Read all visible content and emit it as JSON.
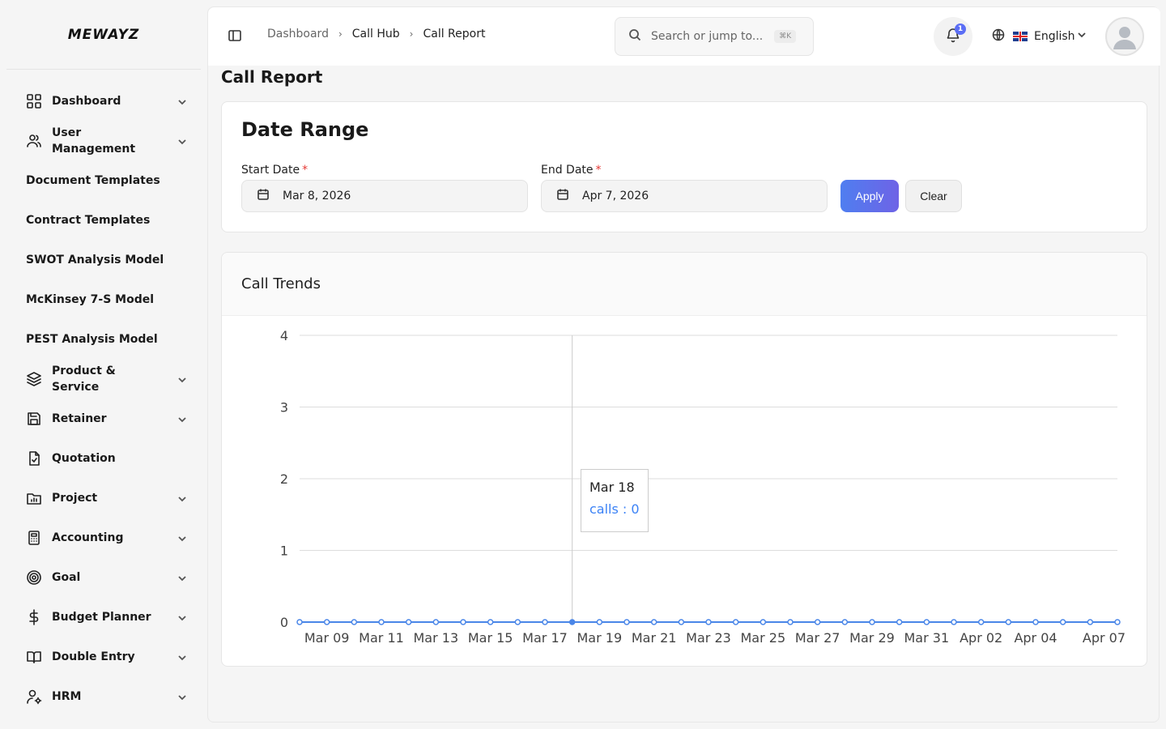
{
  "app": {
    "logo": "MEWAYZ"
  },
  "sidebar": {
    "items": [
      {
        "label": "Dashboard",
        "icon": "grid-icon",
        "has_chevron": true
      },
      {
        "label": "User Management",
        "icon": "users-icon",
        "has_chevron": true
      },
      {
        "label": "Document Templates",
        "icon": "",
        "has_chevron": false
      },
      {
        "label": "Contract Templates",
        "icon": "",
        "has_chevron": false
      },
      {
        "label": "SWOT Analysis Model",
        "icon": "",
        "has_chevron": false
      },
      {
        "label": "McKinsey 7-S Model",
        "icon": "",
        "has_chevron": false
      },
      {
        "label": "PEST Analysis Model",
        "icon": "",
        "has_chevron": false
      },
      {
        "label": "Product & Service",
        "icon": "layers-icon",
        "has_chevron": true
      },
      {
        "label": "Retainer",
        "icon": "save-icon",
        "has_chevron": true
      },
      {
        "label": "Quotation",
        "icon": "file-check-icon",
        "has_chevron": false
      },
      {
        "label": "Project",
        "icon": "folder-chart-icon",
        "has_chevron": true
      },
      {
        "label": "Accounting",
        "icon": "calculator-icon",
        "has_chevron": true
      },
      {
        "label": "Goal",
        "icon": "target-icon",
        "has_chevron": true
      },
      {
        "label": "Budget Planner",
        "icon": "dollar-icon",
        "has_chevron": true
      },
      {
        "label": "Double Entry",
        "icon": "book-icon",
        "has_chevron": true
      },
      {
        "label": "HRM",
        "icon": "user-cog-icon",
        "has_chevron": true
      }
    ]
  },
  "topbar": {
    "breadcrumb": [
      "Dashboard",
      "Call Hub",
      "Call Report"
    ],
    "search_placeholder": "Search or jump to...",
    "search_shortcut": "⌘K",
    "notification_count": "1",
    "language": "English"
  },
  "page": {
    "title": "Call Report",
    "date_range": {
      "heading": "Date Range",
      "start_label": "Start Date",
      "start_value": "Mar 8, 2026",
      "end_label": "End Date",
      "end_value": "Apr 7, 2026",
      "required_mark": "*",
      "apply_label": "Apply",
      "clear_label": "Clear"
    },
    "chart_card_title": "Call Trends",
    "tooltip": {
      "date": "Mar 18",
      "text": "calls : 0"
    }
  },
  "colors": {
    "accent": "#4a86e8",
    "apply_start": "#4f7ef0",
    "apply_end": "#6e63e6",
    "required": "#e53935"
  },
  "chart_data": {
    "type": "line",
    "title": "Call Trends",
    "xlabel": "",
    "ylabel": "",
    "ylim": [
      0,
      4
    ],
    "yticks": [
      "0",
      "1",
      "2",
      "3",
      "4"
    ],
    "x": [
      "Mar 08",
      "Mar 09",
      "Mar 10",
      "Mar 11",
      "Mar 12",
      "Mar 13",
      "Mar 14",
      "Mar 15",
      "Mar 16",
      "Mar 17",
      "Mar 18",
      "Mar 19",
      "Mar 20",
      "Mar 21",
      "Mar 22",
      "Mar 23",
      "Mar 24",
      "Mar 25",
      "Mar 26",
      "Mar 27",
      "Mar 28",
      "Mar 29",
      "Mar 30",
      "Mar 31",
      "Apr 01",
      "Apr 02",
      "Apr 03",
      "Apr 04",
      "Apr 05",
      "Apr 06",
      "Apr 07"
    ],
    "xtick_labels": [
      "Mar 09",
      "Mar 11",
      "Mar 13",
      "Mar 15",
      "Mar 17",
      "Mar 19",
      "Mar 21",
      "Mar 23",
      "Mar 25",
      "Mar 27",
      "Mar 29",
      "Mar 31",
      "Apr 02",
      "Apr 04",
      "Apr 07"
    ],
    "series": [
      {
        "name": "calls",
        "color": "#4a86e8",
        "values": [
          0,
          0,
          0,
          0,
          0,
          0,
          0,
          0,
          0,
          0,
          0,
          0,
          0,
          0,
          0,
          0,
          0,
          0,
          0,
          0,
          0,
          0,
          0,
          0,
          0,
          0,
          0,
          0,
          0,
          0,
          0
        ]
      }
    ],
    "grid": true,
    "hover_index": 10
  }
}
